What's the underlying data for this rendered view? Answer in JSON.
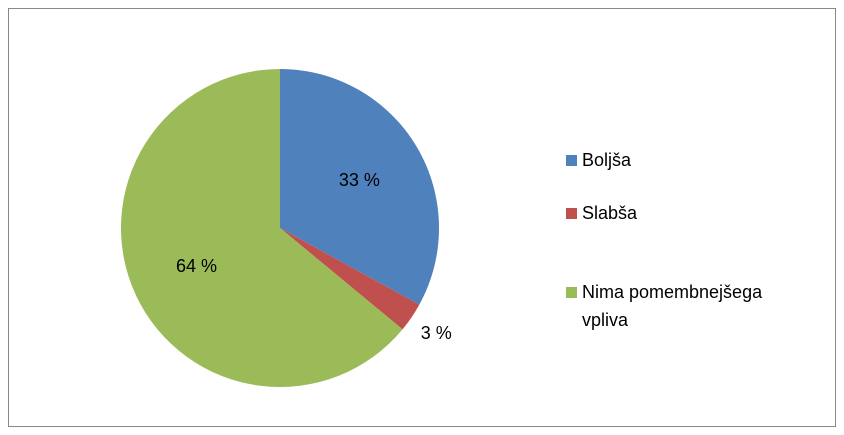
{
  "chart_data": {
    "type": "pie",
    "categories": [
      "Boljša",
      "Slabša",
      "Nima pomembnejšega vpliva"
    ],
    "values": [
      33,
      3,
      64
    ],
    "value_labels": [
      "33 %",
      "3 %",
      "64 %"
    ],
    "colors": [
      "#4f81bd",
      "#c0504d",
      "#9bbb59"
    ],
    "legend": "right"
  }
}
